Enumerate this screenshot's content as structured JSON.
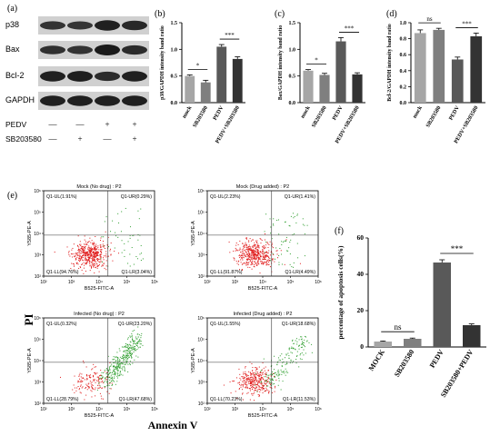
{
  "panel_letters": {
    "a": "(a)",
    "b": "(b)",
    "c": "(c)",
    "d": "(d)",
    "e": "(e)",
    "f": "(f)"
  },
  "western_blot": {
    "bands": [
      "p38",
      "Bax",
      "Bcl-2",
      "GAPDH"
    ],
    "conditions": [
      {
        "name": "PEDV",
        "signs": [
          "—",
          "—",
          "+",
          "+"
        ]
      },
      {
        "name": "SB203580",
        "signs": [
          "—",
          "+",
          "—",
          "+"
        ]
      }
    ]
  },
  "flow": {
    "plots": [
      {
        "title": "Mock (No drug) : P2",
        "ul": "Q1-UL(1.91%)",
        "ur": "Q1-UR(0.29%)",
        "ll": "Q1-LL(94.76%)",
        "lr": "Q1-LR(3.04%)",
        "green": 0.08,
        "cluster": "low"
      },
      {
        "title": "Mock (Drug added) : P2",
        "ul": "Q1-UL(2.23%)",
        "ur": "Q1-UR(1.41%)",
        "ll": "Q1-LL(91.87%)",
        "lr": "Q1-LR(4.49%)",
        "green": 0.12,
        "cluster": "low"
      },
      {
        "title": "Infected (No drug) : P2",
        "ul": "Q1-UL(0.32%)",
        "ur": "Q1-UR(23.20%)",
        "ll": "Q1-LL(28.79%)",
        "lr": "Q1-LR(47.68%)",
        "green": 0.7,
        "cluster": "high"
      },
      {
        "title": "Infected (Drug added) : P2",
        "ul": "Q1-UL(1.55%)",
        "ur": "Q1-UR(18.68%)",
        "ll": "Q1-LL(70.23%)",
        "lr": "Q1-LR(11.53%)",
        "green": 0.35,
        "cluster": "mid"
      }
    ],
    "ylabel": "Y585-PE-A",
    "xlabel": "B525-FITC-A",
    "big_ylabel": "PI",
    "big_xlabel": "Annexin V",
    "ticks": [
      "10²",
      "10³",
      "10⁴",
      "10⁵",
      "10⁶"
    ]
  },
  "chart_data": [
    {
      "type": "bar",
      "panel": "(b)",
      "categories": [
        "mock",
        "SB203580",
        "PEDV",
        "PEDV+SB203580"
      ],
      "values": [
        0.5,
        0.38,
        1.05,
        0.82
      ],
      "errors": [
        0.02,
        0.04,
        0.04,
        0.04
      ],
      "colors": [
        "#a6a6a6",
        "#7f7f7f",
        "#595959",
        "#333333"
      ],
      "ylabel": "p38/GAPDH intensity band ratio",
      "ylim": [
        0,
        1.5
      ],
      "yticks": [
        "0.0",
        "0.5",
        "1.0",
        "1.5"
      ],
      "significance": [
        {
          "from": 0,
          "to": 1,
          "label": "*"
        },
        {
          "from": 2,
          "to": 3,
          "label": "***"
        }
      ]
    },
    {
      "type": "bar",
      "panel": "(c)",
      "categories": [
        "mock",
        "SB203580",
        "PEDV",
        "PEDV+SB203580"
      ],
      "values": [
        0.6,
        0.52,
        1.15,
        0.53
      ],
      "errors": [
        0.02,
        0.03,
        0.07,
        0.03
      ],
      "colors": [
        "#a6a6a6",
        "#7f7f7f",
        "#595959",
        "#333333"
      ],
      "ylabel": "Bax/GAPDH intensity band ratio",
      "ylim": [
        0,
        1.5
      ],
      "yticks": [
        "0.0",
        "0.5",
        "1.0",
        "1.5"
      ],
      "significance": [
        {
          "from": 0,
          "to": 1,
          "label": "*"
        },
        {
          "from": 2,
          "to": 3,
          "label": "***"
        }
      ]
    },
    {
      "type": "bar",
      "panel": "(d)",
      "categories": [
        "mock",
        "SB203580",
        "PEDV",
        "PEDV+SB203580"
      ],
      "values": [
        0.87,
        0.91,
        0.54,
        0.83
      ],
      "errors": [
        0.04,
        0.02,
        0.03,
        0.04
      ],
      "colors": [
        "#a6a6a6",
        "#7f7f7f",
        "#595959",
        "#333333"
      ],
      "ylabel": "Bcl-2/GAPDH intensity band ratio",
      "ylim": [
        0,
        1.0
      ],
      "yticks": [
        "0.0",
        "0.2",
        "0.4",
        "0.6",
        "0.8",
        "1.0"
      ],
      "significance": [
        {
          "from": 0,
          "to": 1,
          "label": "ns"
        },
        {
          "from": 2,
          "to": 3,
          "label": "***"
        }
      ]
    },
    {
      "type": "bar",
      "panel": "(f)",
      "categories": [
        "MOCK",
        "SB203580",
        "PEDV",
        "SB203580+PEDV"
      ],
      "values": [
        3,
        4.5,
        46.5,
        12
      ],
      "errors": [
        0.3,
        0.4,
        1.5,
        0.7
      ],
      "colors": [
        "#a6a6a6",
        "#7f7f7f",
        "#595959",
        "#333333"
      ],
      "ylabel": "percentage of apoptosis cells(%)",
      "ylim": [
        0,
        60
      ],
      "yticks": [
        "0",
        "20",
        "40",
        "60"
      ],
      "significance": [
        {
          "from": 0,
          "to": 1,
          "label": "ns"
        },
        {
          "from": 2,
          "to": 3,
          "label": "***"
        }
      ]
    }
  ]
}
